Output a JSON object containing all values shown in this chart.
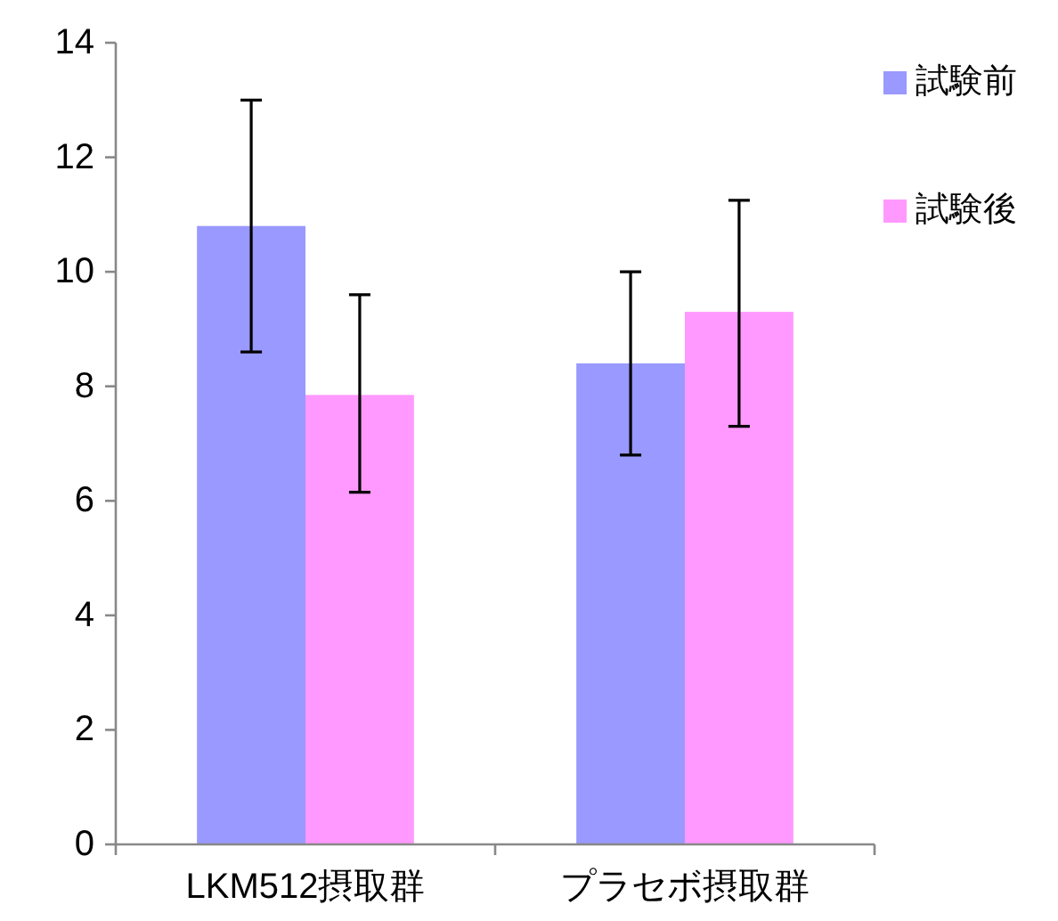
{
  "chart_data": {
    "type": "bar",
    "categories": [
      "LKM512摂取群",
      "プラセボ摂取群"
    ],
    "series": [
      {
        "name": "試験前",
        "color": "#9999ff",
        "values": [
          10.8,
          8.4
        ],
        "errors": [
          [
            8.6,
            13.0
          ],
          [
            6.8,
            10.0
          ]
        ]
      },
      {
        "name": "試験後",
        "color": "#ff99ff",
        "values": [
          7.85,
          9.3
        ],
        "errors": [
          [
            6.15,
            9.6
          ],
          [
            7.3,
            11.25
          ]
        ]
      }
    ],
    "ylim": [
      0,
      14
    ],
    "yticks": [
      0,
      2,
      4,
      6,
      8,
      10,
      12,
      14
    ],
    "grid": false,
    "legend": "top right"
  }
}
